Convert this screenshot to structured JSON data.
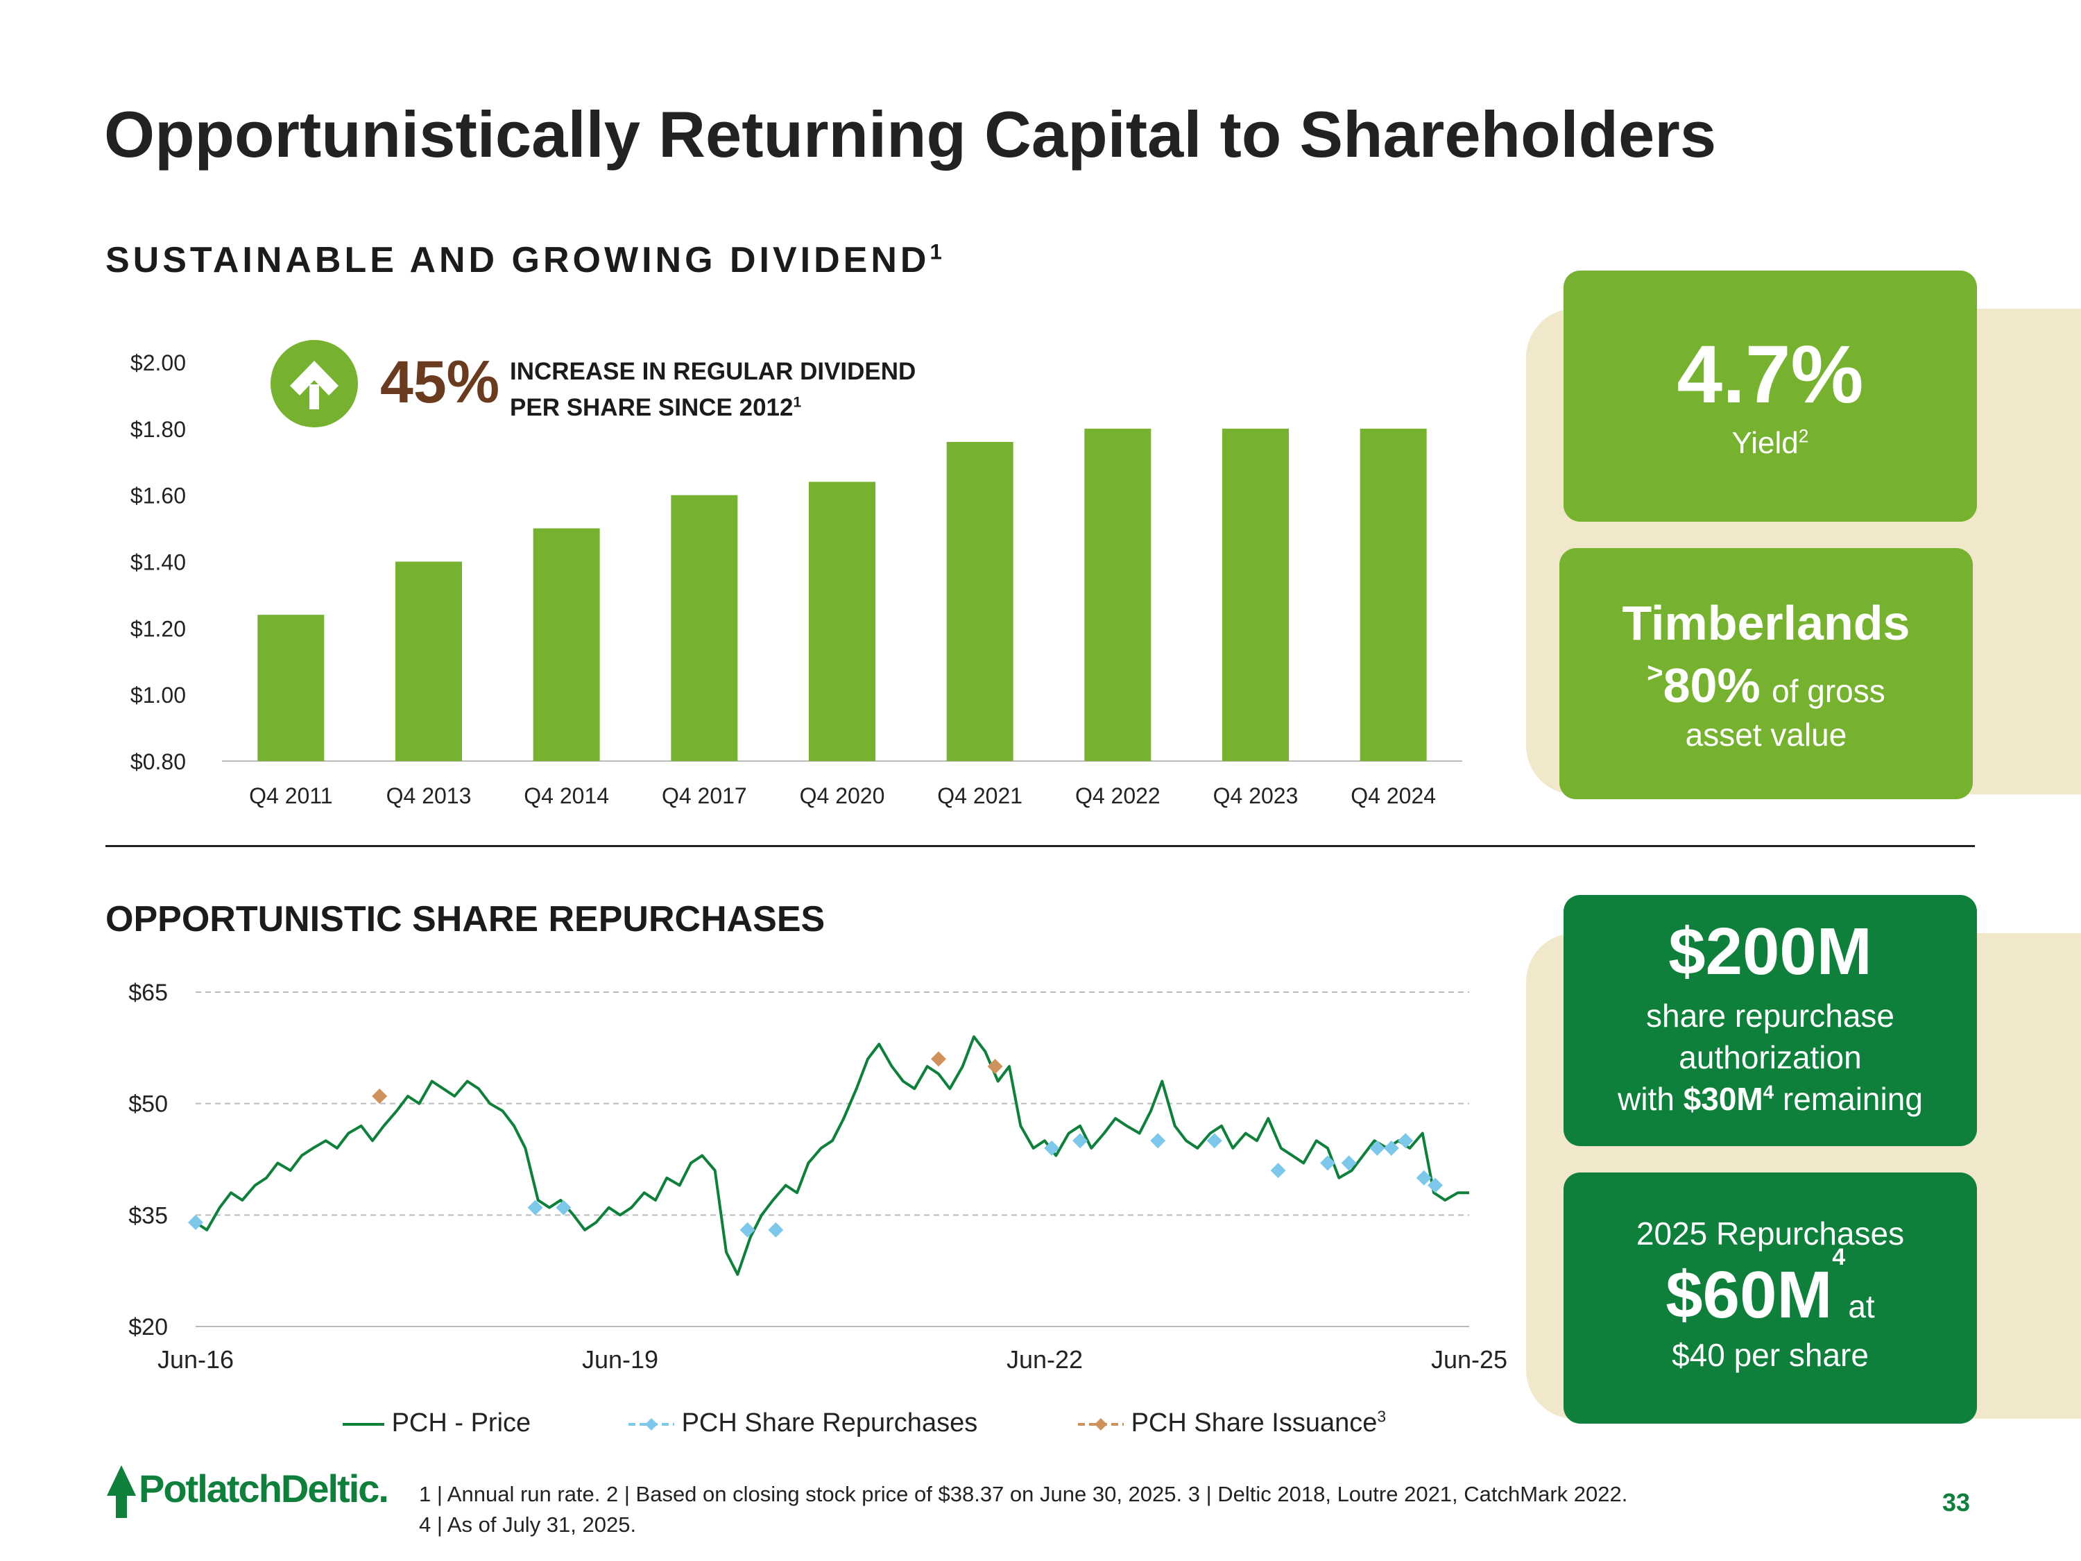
{
  "title": "Opportunistically Returning Capital to Shareholders",
  "dividend_section": {
    "heading": "SUSTAINABLE AND GROWING DIVIDEND",
    "sup": "1"
  },
  "badge": {
    "percent": "45%",
    "line1": "INCREASE IN REGULAR DIVIDEND",
    "line2": "PER SHARE SINCE 2012",
    "sup": "1"
  },
  "repurchase_section": {
    "heading": "OPPORTUNISTIC SHARE REPURCHASES"
  },
  "cards": {
    "yield": {
      "value": "4.7%",
      "label": "Yield",
      "sup": "2"
    },
    "timberlands": {
      "title": "Timberlands",
      "prefix": ">",
      "value": "80%",
      "suffix": "of gross",
      "line2": "asset value"
    },
    "authorization": {
      "value": "$200M",
      "line1": "share repurchase",
      "line2": "authorization",
      "line3_pre": "with ",
      "line3_bold": "$30M",
      "line3_sup": "4",
      "line3_post": " remaining"
    },
    "repurchases2025": {
      "line1": "2025 Repurchases",
      "value": "$60M",
      "sup": "4",
      "at": "at",
      "line3": "$40 per share"
    }
  },
  "legend": {
    "price": "PCH - Price",
    "repurchases": "PCH Share Repurchases",
    "issuance": "PCH Share Issuance",
    "issuance_sup": "3"
  },
  "logo": "PotlatchDeltic.",
  "footnotes": {
    "line1": "1 | Annual run rate.  2 | Based on closing stock price of $38.37 on June 30, 2025.  3 | Deltic 2018, Loutre 2021, CatchMark 2022.",
    "line2": "4 | As of July 31, 2025."
  },
  "page_number": "33",
  "colors": {
    "light_green": "#76b230",
    "dark_green": "#0f7f3c",
    "beige": "#f1e8cc",
    "brown": "#6b3b1f",
    "repurchase_blue": "#7cc7ea",
    "issuance_orange": "#d0925d"
  },
  "chart_data": [
    {
      "type": "bar",
      "title": "",
      "categories": [
        "Q4 2011",
        "Q4 2013",
        "Q4 2014",
        "Q4 2017",
        "Q4 2020",
        "Q4 2021",
        "Q4 2022",
        "Q4 2023",
        "Q4 2024"
      ],
      "values": [
        1.24,
        1.4,
        1.5,
        1.6,
        1.64,
        1.76,
        1.8,
        1.8,
        1.8
      ],
      "ylim": [
        0.8,
        2.0
      ],
      "yticks": [
        "$0.80",
        "$1.00",
        "$1.20",
        "$1.40",
        "$1.60",
        "$1.80",
        "$2.00"
      ],
      "ytick_values": [
        0.8,
        1.0,
        1.2,
        1.4,
        1.6,
        1.8,
        2.0
      ],
      "color": "#76b230",
      "grid": false
    },
    {
      "type": "line",
      "title": "",
      "x_range": [
        "2016-06",
        "2025-06"
      ],
      "x_ticks": [
        "Jun-16",
        "Jun-19",
        "Jun-22",
        "Jun-25"
      ],
      "ylim": [
        20,
        65
      ],
      "yticks": [
        "$20",
        "$35",
        "$50",
        "$65"
      ],
      "ytick_values": [
        20,
        35,
        50,
        65
      ],
      "grid": "dashed horizontal",
      "legend": "bottom",
      "series": [
        {
          "name": "PCH - Price",
          "style": "line",
          "color": "#0f7f3c",
          "x": [
            2016.5,
            2016.58,
            2016.67,
            2016.75,
            2016.83,
            2016.92,
            2017.0,
            2017.08,
            2017.17,
            2017.25,
            2017.33,
            2017.42,
            2017.5,
            2017.58,
            2017.67,
            2017.75,
            2017.83,
            2017.92,
            2018.0,
            2018.08,
            2018.17,
            2018.25,
            2018.33,
            2018.42,
            2018.5,
            2018.58,
            2018.67,
            2018.75,
            2018.83,
            2018.92,
            2019.0,
            2019.08,
            2019.17,
            2019.25,
            2019.33,
            2019.42,
            2019.5,
            2019.58,
            2019.67,
            2019.75,
            2019.83,
            2019.92,
            2020.0,
            2020.08,
            2020.17,
            2020.25,
            2020.33,
            2020.42,
            2020.5,
            2020.58,
            2020.67,
            2020.75,
            2020.83,
            2020.92,
            2021.0,
            2021.08,
            2021.17,
            2021.25,
            2021.33,
            2021.42,
            2021.5,
            2021.58,
            2021.67,
            2021.75,
            2021.83,
            2021.92,
            2022.0,
            2022.08,
            2022.17,
            2022.25,
            2022.33,
            2022.42,
            2022.5,
            2022.58,
            2022.67,
            2022.75,
            2022.83,
            2022.92,
            2023.0,
            2023.08,
            2023.17,
            2023.25,
            2023.33,
            2023.42,
            2023.5,
            2023.58,
            2023.67,
            2023.75,
            2023.83,
            2023.92,
            2024.0,
            2024.08,
            2024.17,
            2024.25,
            2024.33,
            2024.42,
            2024.5,
            2024.58,
            2024.67,
            2024.75,
            2024.83,
            2024.92,
            2025.0,
            2025.08,
            2025.17,
            2025.25,
            2025.33,
            2025.42,
            2025.5
          ],
          "y": [
            34,
            33,
            36,
            38,
            37,
            39,
            40,
            42,
            41,
            43,
            44,
            45,
            44,
            46,
            47,
            45,
            47,
            49,
            51,
            50,
            53,
            52,
            51,
            53,
            52,
            50,
            49,
            47,
            44,
            37,
            36,
            37,
            35,
            33,
            34,
            36,
            35,
            36,
            38,
            37,
            40,
            39,
            42,
            43,
            41,
            30,
            27,
            32,
            35,
            37,
            39,
            38,
            42,
            44,
            45,
            48,
            52,
            56,
            58,
            55,
            53,
            52,
            55,
            54,
            52,
            55,
            59,
            57,
            53,
            55,
            47,
            44,
            45,
            43,
            46,
            47,
            44,
            46,
            48,
            47,
            46,
            49,
            53,
            47,
            45,
            44,
            46,
            47,
            44,
            46,
            45,
            48,
            44,
            43,
            42,
            45,
            44,
            40,
            41,
            43,
            45,
            44,
            45,
            44,
            46,
            38,
            37,
            38,
            38
          ]
        },
        {
          "name": "PCH Share Repurchases",
          "style": "markers",
          "color": "#7cc7ea",
          "x": [
            2016.5,
            2018.9,
            2019.1,
            2020.4,
            2020.6,
            2022.55,
            2022.75,
            2023.3,
            2023.7,
            2024.15,
            2024.5,
            2024.65,
            2024.85,
            2024.95,
            2025.05,
            2025.18,
            2025.26
          ],
          "y": [
            34,
            36,
            36,
            33,
            33,
            44,
            45,
            45,
            45,
            41,
            42,
            42,
            44,
            44,
            45,
            40,
            39
          ]
        },
        {
          "name": "PCH Share Issuance",
          "style": "markers",
          "color": "#d0925d",
          "x": [
            2017.8,
            2021.75,
            2022.15
          ],
          "y": [
            51,
            56,
            55
          ]
        }
      ]
    }
  ]
}
